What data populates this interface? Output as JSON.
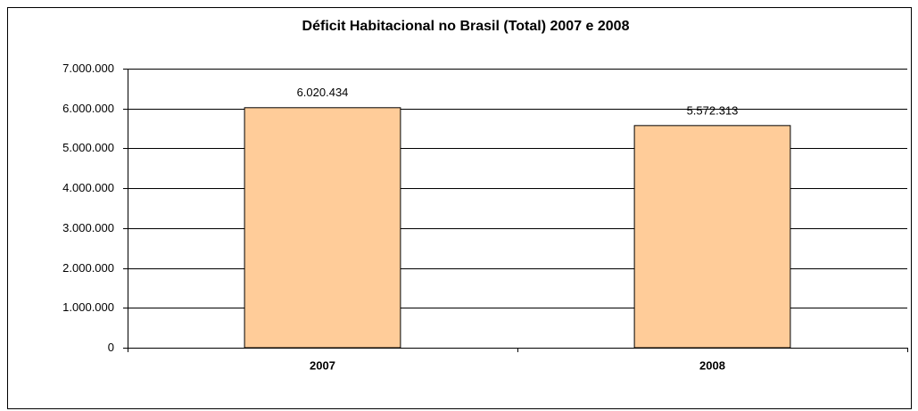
{
  "chart_data": {
    "type": "bar",
    "title": "Déficit Habitacional no Brasil (Total) 2007 e 2008",
    "categories": [
      "2007",
      "2008"
    ],
    "values": [
      6020434,
      5572313
    ],
    "value_labels": [
      "6.020.434",
      "5.572.313"
    ],
    "color": "#ffcc99",
    "ylim": [
      0,
      7000000
    ],
    "yticks": [
      0,
      {
        "value": 1000000,
        "label": "1.000.000"
      },
      {
        "value": 2000000,
        "label": "2.000.000"
      },
      {
        "value": 3000000,
        "label": "3.000.000"
      },
      {
        "value": 4000000,
        "label": "4.000.000"
      },
      {
        "value": 5000000,
        "label": "5.000.000"
      },
      {
        "value": 6000000,
        "label": "6.000.000"
      },
      {
        "value": 7000000,
        "label": "7.000.000"
      }
    ],
    "grid": true
  }
}
